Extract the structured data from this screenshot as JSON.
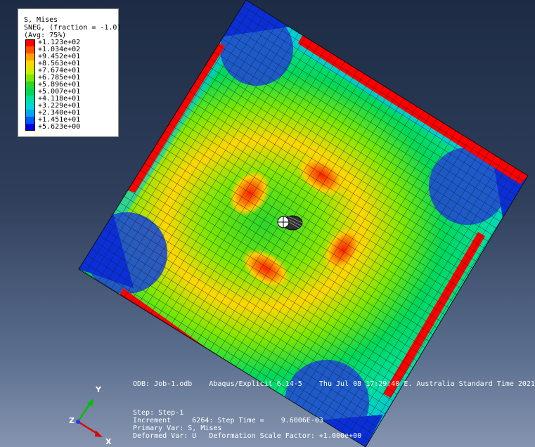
{
  "legend": {
    "variable": "S, Mises",
    "section": "SNEG, (fraction = -1.0)",
    "averaging": "(Avg: 75%)",
    "entries": [
      {
        "label": "+1.123e+02",
        "color": "#ff0000"
      },
      {
        "label": "+1.034e+02",
        "color": "#ff5000"
      },
      {
        "label": "+9.452e+01",
        "color": "#ff9f00"
      },
      {
        "label": "+8.563e+01",
        "color": "#ffd700"
      },
      {
        "label": "+7.674e+01",
        "color": "#c8f000"
      },
      {
        "label": "+6.785e+01",
        "color": "#7fe800"
      },
      {
        "label": "+5.896e+01",
        "color": "#2ad72a"
      },
      {
        "label": "+5.007e+01",
        "color": "#00d85a"
      },
      {
        "label": "+4.118e+01",
        "color": "#00e0a0"
      },
      {
        "label": "+3.229e+01",
        "color": "#00d8d8"
      },
      {
        "label": "+2.340e+01",
        "color": "#00a8f0"
      },
      {
        "label": "+1.451e+01",
        "color": "#0058ff"
      },
      {
        "label": "+5.623e+00",
        "color": "#0000e0"
      }
    ]
  },
  "info": {
    "odb_line": "ODB: Job-1.odb    Abaqus/Explicit 6.14-5    Thu Jul 08 17:29:40 E. Australia Standard Time 2021",
    "step_line": "Step: Step-1",
    "increment_line": "Increment     6264: Step Time =    9.6006E-03",
    "primary_line": "Primary Var: S, Mises",
    "deformed_line": "Deformed Var: U   Deformation Scale Factor: +1.000e+00"
  },
  "triad": {
    "y": "Y",
    "x": "X",
    "z": "Z",
    "y_color": "#00c000",
    "x_color": "#e00000",
    "z_color": "#1e3cff"
  },
  "model": {
    "edge_color": "#ff0000",
    "support_color": "#1f4fd0"
  }
}
